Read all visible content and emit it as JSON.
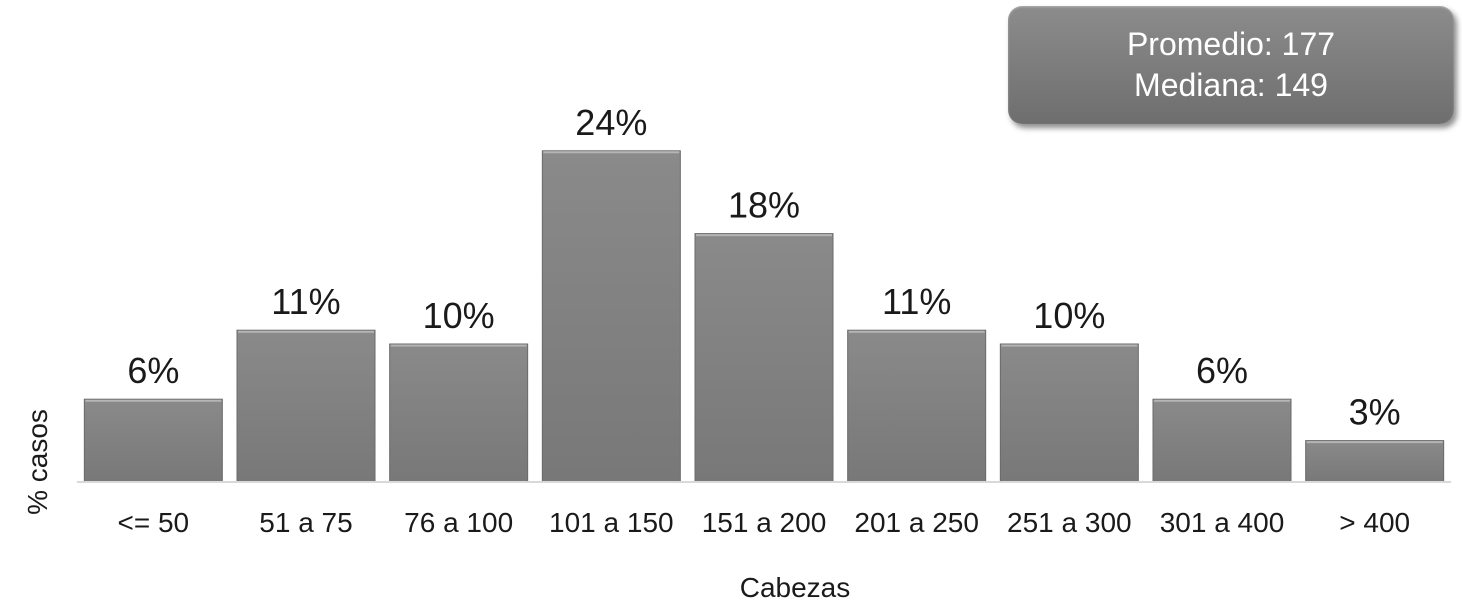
{
  "stats": {
    "promedio": "Promedio: 177",
    "mediana": "Mediana: 149"
  },
  "chart_data": {
    "type": "bar",
    "title": "",
    "xlabel": "Cabezas",
    "ylabel": "% casos",
    "categories": [
      "<= 50",
      "51 a 75",
      "76 a 100",
      "101 a 150",
      "151 a 200",
      "201 a 250",
      "251 a 300",
      "301 a 400",
      "> 400"
    ],
    "values": [
      6,
      11,
      10,
      24,
      18,
      11,
      10,
      6,
      3
    ],
    "value_labels": [
      "6%",
      "11%",
      "10%",
      "24%",
      "18%",
      "11%",
      "10%",
      "6%",
      "3%"
    ],
    "ylim": [
      0,
      25
    ],
    "grid": false,
    "bar_color": "#7f7f7f"
  }
}
